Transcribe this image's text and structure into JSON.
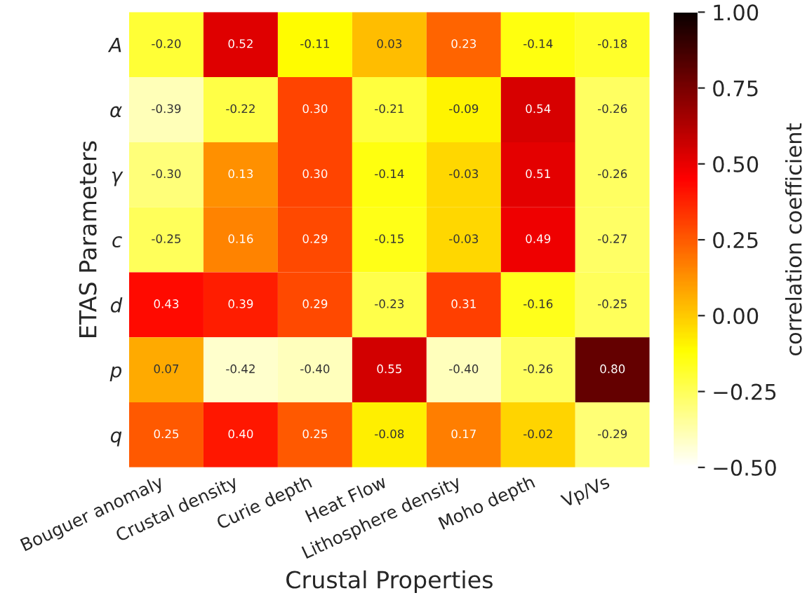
{
  "chart_data": {
    "type": "heatmap",
    "xlabel": "Crustal Properties",
    "ylabel": "ETAS Parameters",
    "clabel": "correlation coefficient",
    "categories": [
      "Bouguer anomaly",
      "Crustal density",
      "Curie depth",
      "Heat Flow",
      "Lithosphere density",
      "Moho depth",
      "Vp/Vs"
    ],
    "y_categories": [
      "A",
      "α",
      "γ",
      "c",
      "d",
      "p",
      "q"
    ],
    "cells": [
      [
        -0.2,
        0.52,
        -0.11,
        0.03,
        0.23,
        -0.14,
        -0.18
      ],
      [
        -0.39,
        -0.22,
        0.3,
        -0.21,
        -0.09,
        0.54,
        -0.26
      ],
      [
        -0.3,
        0.13,
        0.3,
        -0.14,
        -0.03,
        0.51,
        -0.26
      ],
      [
        -0.25,
        0.16,
        0.29,
        -0.15,
        -0.03,
        0.49,
        -0.27
      ],
      [
        0.43,
        0.39,
        0.29,
        -0.23,
        0.31,
        -0.16,
        -0.25
      ],
      [
        0.07,
        -0.42,
        -0.4,
        0.55,
        -0.4,
        -0.26,
        0.8
      ],
      [
        0.25,
        0.4,
        0.25,
        -0.08,
        0.17,
        -0.02,
        -0.29
      ]
    ],
    "cell_labels": [
      [
        "-0.20",
        "0.52",
        "-0.11",
        "0.03",
        "0.23",
        "-0.14",
        "-0.18"
      ],
      [
        "-0.39",
        "-0.22",
        "0.30",
        "-0.21",
        "-0.09",
        "0.54",
        "-0.26"
      ],
      [
        "-0.30",
        "0.13",
        "0.30",
        "-0.14",
        "-0.03",
        "0.51",
        "-0.26"
      ],
      [
        "-0.25",
        "0.16",
        "0.29",
        "-0.15",
        "-0.03",
        "0.49",
        "-0.27"
      ],
      [
        "0.43",
        "0.39",
        "0.29",
        "-0.23",
        "0.31",
        "-0.16",
        "-0.25"
      ],
      [
        "0.07",
        "-0.42",
        "-0.40",
        "0.55",
        "-0.40",
        "-0.26",
        "0.80"
      ],
      [
        "0.25",
        "0.40",
        "0.25",
        "-0.08",
        "0.17",
        "-0.02",
        "-0.29"
      ]
    ],
    "clim": [
      -0.5,
      1.0
    ],
    "cticks": [
      {
        "value": 1.0,
        "label": "1.00"
      },
      {
        "value": 0.75,
        "label": "0.75"
      },
      {
        "value": 0.5,
        "label": "0.50"
      },
      {
        "value": 0.25,
        "label": "0.25"
      },
      {
        "value": 0.0,
        "label": "0.00"
      },
      {
        "value": -0.25,
        "label": "−0.25"
      },
      {
        "value": -0.5,
        "label": "−0.50"
      }
    ],
    "data_labels": true
  }
}
